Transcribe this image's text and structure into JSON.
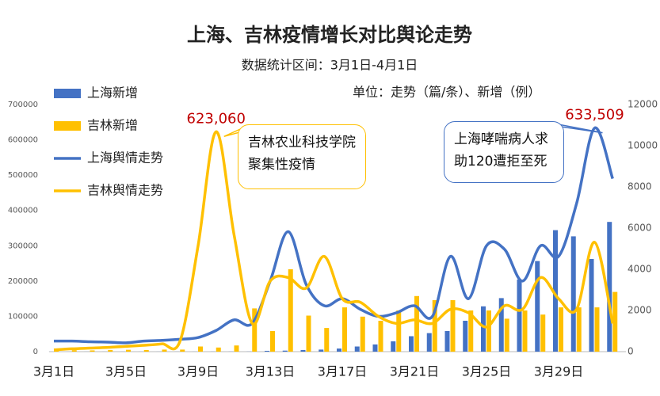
{
  "chart_data": {
    "type": "combo",
    "title": "上海、吉林疫情增长对比舆论走势",
    "subtitle": "数据统计区间：3月1日-4月1日",
    "unit_note": "单位：走势（篇/条）、新增（例）",
    "categories": [
      "3月1日",
      null,
      null,
      null,
      "3月5日",
      null,
      null,
      null,
      "3月9日",
      null,
      null,
      null,
      "3月13日",
      null,
      null,
      null,
      "3月17日",
      null,
      null,
      null,
      "3月21日",
      null,
      null,
      null,
      "3月25日",
      null,
      null,
      null,
      "3月29日",
      null,
      null,
      null
    ],
    "series": [
      {
        "name": "上海新增",
        "kind": "bar",
        "axis": "y2",
        "color": "#4472c4",
        "values": [
          2,
          2,
          3,
          3,
          3,
          3,
          3,
          3,
          3,
          5,
          5,
          5,
          40,
          50,
          80,
          100,
          150,
          250,
          350,
          500,
          750,
          900,
          1000,
          1500,
          2200,
          2600,
          3500,
          4400,
          5900,
          5600,
          4500,
          6300
        ]
      },
      {
        "name": "吉林新增",
        "kind": "bar",
        "axis": "y2",
        "color": "#ffc000",
        "values": [
          50,
          70,
          60,
          80,
          90,
          80,
          100,
          100,
          250,
          200,
          300,
          2100,
          1000,
          4000,
          1750,
          1150,
          2150,
          1700,
          1500,
          2000,
          2700,
          2500,
          2500,
          2000,
          2000,
          1600,
          2000,
          1800,
          2150,
          2150,
          2150,
          2900
        ]
      },
      {
        "name": "上海舆情走势",
        "kind": "line",
        "axis": "y",
        "color": "#4472c4",
        "values": [
          30000,
          30000,
          28000,
          27000,
          25000,
          30000,
          32000,
          35000,
          40000,
          60000,
          90000,
          80000,
          200000,
          340000,
          190000,
          130000,
          150000,
          120000,
          100000,
          110000,
          130000,
          100000,
          270000,
          150000,
          300000,
          290000,
          200000,
          300000,
          270000,
          420000,
          633509,
          490000
        ],
        "value_labels": [
          null,
          null,
          null,
          null,
          null,
          null,
          null,
          null,
          null,
          null,
          null,
          null,
          null,
          null,
          null,
          null,
          null,
          null,
          null,
          null,
          null,
          null,
          null,
          null,
          null,
          null,
          null,
          null,
          null,
          null,
          "633,509",
          null
        ]
      },
      {
        "name": "吉林舆情走势",
        "kind": "line",
        "axis": "y",
        "color": "#ffc000",
        "values": [
          5000,
          8000,
          10000,
          12000,
          15000,
          18000,
          22000,
          30000,
          300000,
          623060,
          330000,
          80000,
          200000,
          210000,
          180000,
          270000,
          150000,
          140000,
          100000,
          80000,
          90000,
          80000,
          120000,
          110000,
          70000,
          130000,
          120000,
          210000,
          150000,
          120000,
          310000,
          80000
        ],
        "value_labels": [
          null,
          null,
          null,
          null,
          null,
          null,
          null,
          null,
          null,
          "623,060",
          null,
          null,
          null,
          null,
          null,
          null,
          null,
          null,
          null,
          null,
          null,
          null,
          null,
          null,
          null,
          null,
          null,
          null,
          null,
          null,
          null,
          null
        ]
      }
    ],
    "ylim": [
      0,
      700000
    ],
    "yticks": [
      0,
      100000,
      200000,
      300000,
      400000,
      500000,
      600000,
      700000
    ],
    "y2lim": [
      0,
      12000
    ],
    "y2ticks": [
      0,
      2000,
      4000,
      6000,
      8000,
      10000,
      12000
    ],
    "legend": "top-left",
    "grid": false,
    "annotations": [
      {
        "text": "吉林农业科技学院聚集性疫情",
        "series": 3,
        "index": 9
      },
      {
        "text": "上海哮喘病人求助120遭拒至死",
        "series": 2,
        "index": 30
      }
    ]
  }
}
